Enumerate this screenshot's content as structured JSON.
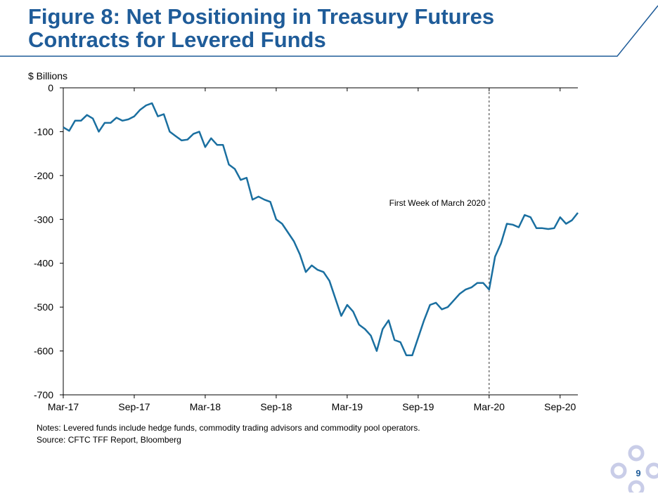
{
  "chart_data": {
    "type": "line",
    "title": [
      "Figure 8: Net Positioning in Treasury Futures",
      "Contracts for Levered Funds"
    ],
    "y_label": "$ Billions",
    "categories": [
      "Mar-17",
      null,
      null,
      null,
      null,
      null,
      null,
      null,
      null,
      null,
      null,
      null,
      "Sep-17",
      null,
      null,
      null,
      null,
      null,
      null,
      null,
      null,
      null,
      null,
      null,
      "Mar-18",
      null,
      null,
      null,
      null,
      null,
      null,
      null,
      null,
      null,
      null,
      null,
      "Sep-18",
      null,
      null,
      null,
      null,
      null,
      null,
      null,
      null,
      null,
      null,
      null,
      "Mar-19",
      null,
      null,
      null,
      null,
      null,
      null,
      null,
      null,
      null,
      null,
      null,
      "Sep-19",
      null,
      null,
      null,
      null,
      null,
      null,
      null,
      null,
      null,
      null,
      null,
      "Mar-20",
      null,
      null,
      null,
      null,
      null,
      null,
      null,
      null,
      null,
      null,
      null,
      "Sep-20",
      null,
      null,
      null
    ],
    "series": [
      {
        "name": "Levered Funds",
        "color": "#1a6fa0",
        "values": [
          -90,
          -98,
          -75,
          -75,
          -62,
          -70,
          -100,
          -80,
          -80,
          -68,
          -75,
          -72,
          -65,
          -50,
          -40,
          -35,
          -65,
          -60,
          -100,
          -110,
          -120,
          -118,
          -105,
          -100,
          -135,
          -115,
          -130,
          -130,
          -175,
          -185,
          -210,
          -205,
          -255,
          -248,
          -255,
          -260,
          -300,
          -310,
          -330,
          -350,
          -380,
          -420,
          -405,
          -415,
          -420,
          -440,
          -480,
          -520,
          -495,
          -510,
          -540,
          -550,
          -565,
          -600,
          -550,
          -530,
          -575,
          -580,
          -610,
          -610,
          -570,
          -530,
          -495,
          -490,
          -505,
          -500,
          -485,
          -470,
          -460,
          -455,
          -445,
          -445,
          -460,
          -385,
          -355,
          -310,
          -312,
          -318,
          -290,
          -295,
          -320,
          -320,
          -322,
          -320,
          -295,
          -310,
          -302,
          -285
        ]
      }
    ],
    "ylim": [
      -700,
      0
    ],
    "yticks": [
      -700,
      -600,
      -500,
      -400,
      -300,
      -200,
      -100,
      0
    ],
    "annotation": {
      "text": "First Week of March 2020",
      "at": "Mar-20"
    },
    "notes": "Notes: Levered funds include hedge funds, commodity trading advisors and commodity pool operators.",
    "source": "Source: CFTC TFF Report, Bloomberg",
    "page_number": "9"
  }
}
